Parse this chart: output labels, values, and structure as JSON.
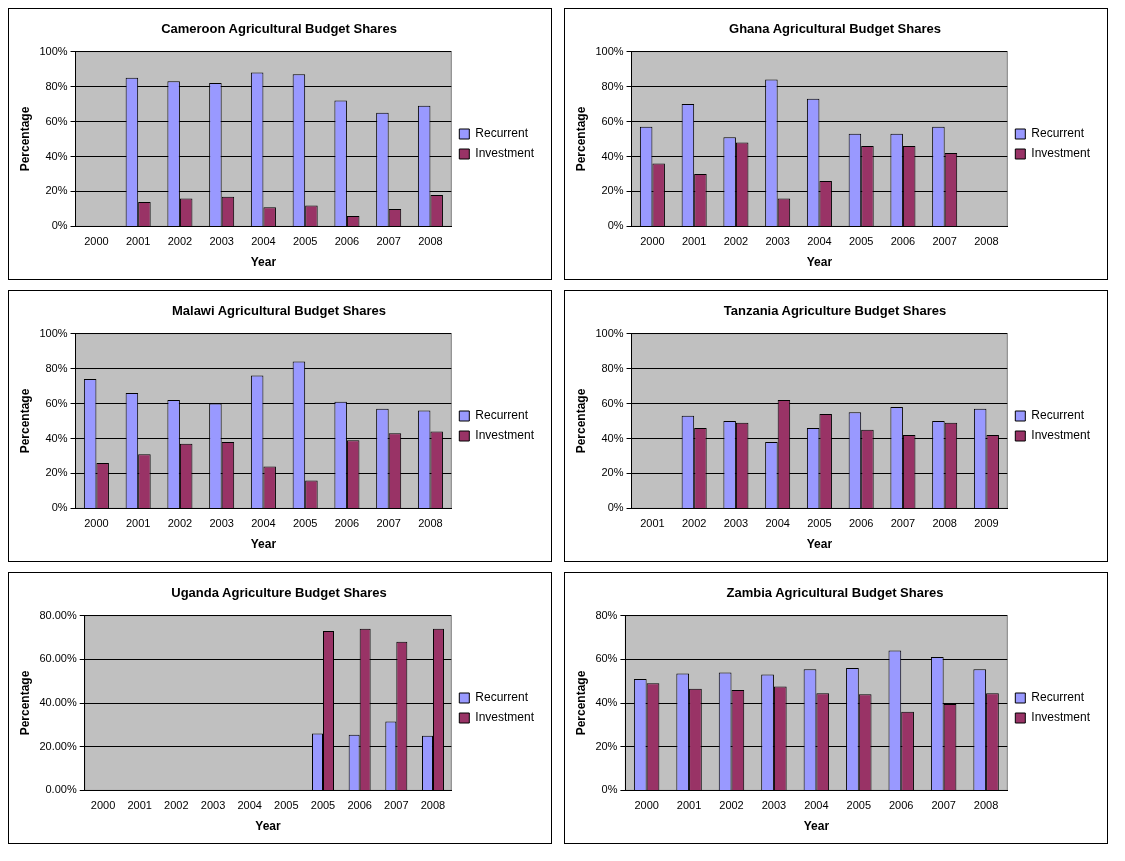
{
  "chart_data": [
    {
      "type": "bar",
      "title": "Cameroon Agricultural Budget Shares",
      "xlabel": "Year",
      "ylabel": "Percentage",
      "categories": [
        "2000",
        "2001",
        "2002",
        "2003",
        "2004",
        "2005",
        "2006",
        "2007",
        "2008"
      ],
      "series": [
        {
          "name": "Recurrent",
          "color": "#9999ff",
          "values": [
            null,
            85,
            83,
            82,
            88,
            87,
            72,
            65,
            69
          ]
        },
        {
          "name": "Investment",
          "color": "#993366",
          "values": [
            null,
            14,
            16,
            17,
            11,
            12,
            6,
            10,
            18
          ]
        }
      ],
      "ylim": [
        0,
        100
      ],
      "yticks": [
        {
          "value": 0,
          "label": "0%"
        },
        {
          "value": 20,
          "label": "20%"
        },
        {
          "value": 40,
          "label": "40%"
        },
        {
          "value": 60,
          "label": "60%"
        },
        {
          "value": 80,
          "label": "80%"
        },
        {
          "value": 100,
          "label": "100%"
        }
      ],
      "grid": "y",
      "legend": "right"
    },
    {
      "type": "bar",
      "title": "Ghana Agricultural Budget Shares",
      "xlabel": "Year",
      "ylabel": "Percentage",
      "categories": [
        "2000",
        "2001",
        "2002",
        "2003",
        "2004",
        "2005",
        "2006",
        "2007",
        "2008"
      ],
      "series": [
        {
          "name": "Recurrent",
          "color": "#9999ff",
          "values": [
            57,
            70,
            51,
            84,
            73,
            53,
            53,
            57,
            null
          ]
        },
        {
          "name": "Investment",
          "color": "#993366",
          "values": [
            36,
            30,
            48,
            16,
            26,
            46,
            46,
            42,
            null
          ]
        }
      ],
      "ylim": [
        0,
        100
      ],
      "yticks": [
        {
          "value": 0,
          "label": "0%"
        },
        {
          "value": 20,
          "label": "20%"
        },
        {
          "value": 40,
          "label": "40%"
        },
        {
          "value": 60,
          "label": "60%"
        },
        {
          "value": 80,
          "label": "80%"
        },
        {
          "value": 100,
          "label": "100%"
        }
      ],
      "grid": "y",
      "legend": "right"
    },
    {
      "type": "bar",
      "title": "Malawi Agricultural Budget Shares",
      "xlabel": "Year",
      "ylabel": "Percentage",
      "categories": [
        "2000",
        "2001",
        "2002",
        "2003",
        "2004",
        "2005",
        "2006",
        "2007",
        "2008"
      ],
      "series": [
        {
          "name": "Recurrent",
          "color": "#9999ff",
          "values": [
            74,
            66,
            62,
            60,
            76,
            84,
            61,
            57,
            56
          ]
        },
        {
          "name": "Investment",
          "color": "#993366",
          "values": [
            26,
            31,
            37,
            38,
            24,
            16,
            39,
            43,
            44
          ]
        }
      ],
      "ylim": [
        0,
        100
      ],
      "yticks": [
        {
          "value": 0,
          "label": "0%"
        },
        {
          "value": 20,
          "label": "20%"
        },
        {
          "value": 40,
          "label": "40%"
        },
        {
          "value": 60,
          "label": "60%"
        },
        {
          "value": 80,
          "label": "80%"
        },
        {
          "value": 100,
          "label": "100%"
        }
      ],
      "grid": "y",
      "legend": "right"
    },
    {
      "type": "bar",
      "title": "Tanzania Agriculture Budget Shares",
      "xlabel": "Year",
      "ylabel": "Percentage",
      "categories": [
        "2001",
        "2002",
        "2003",
        "2004",
        "2005",
        "2006",
        "2007",
        "2008",
        "2009"
      ],
      "series": [
        {
          "name": "Recurrent",
          "color": "#9999ff",
          "values": [
            null,
            53,
            50,
            38,
            46,
            55,
            58,
            50,
            57
          ]
        },
        {
          "name": "Investment",
          "color": "#993366",
          "values": [
            null,
            46,
            49,
            62,
            54,
            45,
            42,
            49,
            42
          ]
        }
      ],
      "ylim": [
        0,
        100
      ],
      "yticks": [
        {
          "value": 0,
          "label": "0%"
        },
        {
          "value": 20,
          "label": "20%"
        },
        {
          "value": 40,
          "label": "40%"
        },
        {
          "value": 60,
          "label": "60%"
        },
        {
          "value": 80,
          "label": "80%"
        },
        {
          "value": 100,
          "label": "100%"
        }
      ],
      "grid": "y",
      "legend": "right"
    },
    {
      "type": "bar",
      "title": "Uganda Agriculture Budget Shares",
      "xlabel": "Year",
      "ylabel": "Percentage",
      "categories": [
        "2000",
        "2001",
        "2002",
        "2003",
        "2004",
        "2005",
        "2005",
        "2006",
        "2007",
        "2008"
      ],
      "series": [
        {
          "name": "Recurrent",
          "color": "#9999ff",
          "values": [
            null,
            null,
            null,
            null,
            null,
            null,
            26,
            25.5,
            31.5,
            25
          ]
        },
        {
          "name": "Investment",
          "color": "#993366",
          "values": [
            null,
            null,
            null,
            null,
            null,
            null,
            73,
            74,
            68,
            74
          ]
        }
      ],
      "ylim": [
        0,
        80
      ],
      "yticks": [
        {
          "value": 0,
          "label": "0.00%"
        },
        {
          "value": 20,
          "label": "20.00%"
        },
        {
          "value": 40,
          "label": "40.00%"
        },
        {
          "value": 60,
          "label": "60.00%"
        },
        {
          "value": 80,
          "label": "80.00%"
        }
      ],
      "grid": "y",
      "legend": "right"
    },
    {
      "type": "bar",
      "title": "Zambia Agricultural Budget Shares",
      "xlabel": "Year",
      "ylabel": "Percentage",
      "categories": [
        "2000",
        "2001",
        "2002",
        "2003",
        "2004",
        "2005",
        "2006",
        "2007",
        "2008"
      ],
      "series": [
        {
          "name": "Recurrent",
          "color": "#9999ff",
          "values": [
            51,
            53.5,
            54,
            53,
            55.5,
            56,
            64,
            61,
            55.5
          ]
        },
        {
          "name": "Investment",
          "color": "#993366",
          "values": [
            49,
            46.5,
            46,
            47.5,
            44.5,
            44,
            36,
            39.5,
            44.5
          ]
        }
      ],
      "ylim": [
        0,
        80
      ],
      "yticks": [
        {
          "value": 0,
          "label": "0%"
        },
        {
          "value": 20,
          "label": "20%"
        },
        {
          "value": 40,
          "label": "40%"
        },
        {
          "value": 60,
          "label": "60%"
        },
        {
          "value": 80,
          "label": "80%"
        }
      ],
      "grid": "y",
      "legend": "right"
    }
  ]
}
